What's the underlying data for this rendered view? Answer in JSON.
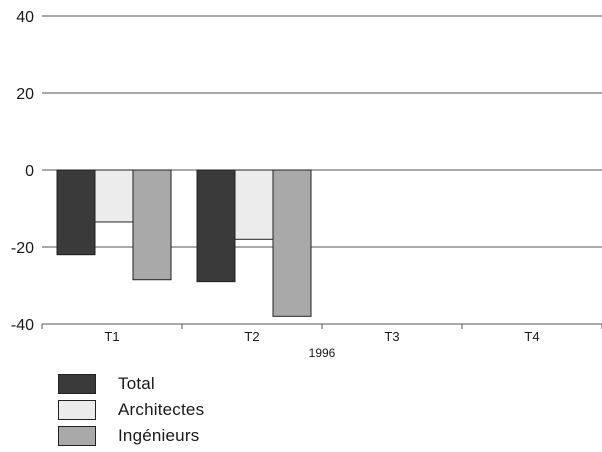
{
  "chart_data": {
    "type": "bar",
    "categories": [
      "T1",
      "T2",
      "T3",
      "T4"
    ],
    "group_label": "1996",
    "series": [
      {
        "name": "Total",
        "values": [
          -22,
          -29,
          null,
          null
        ],
        "color": "#3a3a3a"
      },
      {
        "name": "Architectes",
        "values": [
          -13.5,
          -18,
          null,
          null
        ],
        "color": "#ececec"
      },
      {
        "name": "Ingénieurs",
        "values": [
          -28.5,
          -38,
          null,
          null
        ],
        "color": "#a9a9a9"
      }
    ],
    "ylim": [
      -40,
      40
    ],
    "yticks": [
      40,
      20,
      0,
      -20,
      -40
    ],
    "grid": true,
    "legend_position": "bottom-left",
    "title": "",
    "xlabel": "",
    "ylabel": ""
  }
}
